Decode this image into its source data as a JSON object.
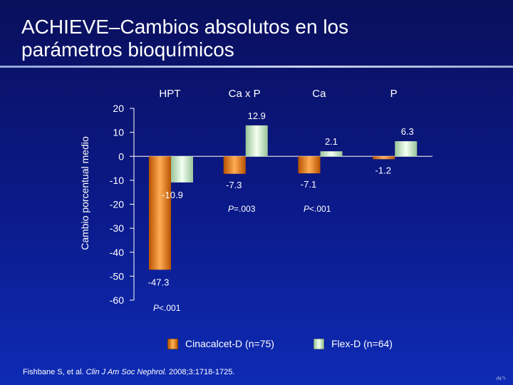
{
  "slide": {
    "title_line1": "ACHIEVE–Cambios absolutos en los",
    "title_line2": "parámetros bioquímicos",
    "citation_authors": "Fishbane S, et al.",
    "citation_journal": "Clin J Am Soc Nephrol.",
    "citation_rest": "2008;3:1718-1725.",
    "slide_number": "‹N.º›"
  },
  "chart_data": {
    "type": "bar",
    "categories": [
      "HPT",
      "Ca x P",
      "Ca",
      "P"
    ],
    "series": [
      {
        "name": "Cinacalcet-D (n=75)",
        "color": "#e97e10",
        "values": [
          -47.3,
          -7.3,
          -7.1,
          -1.2
        ]
      },
      {
        "name": "Flex-D (n=64)",
        "color": "#c8f0c0",
        "values": [
          -10.9,
          12.9,
          2.1,
          6.3
        ]
      }
    ],
    "data_labels": [
      [
        "-47.3",
        "-7.3",
        "-7.1",
        "-1.2"
      ],
      [
        "-10.9",
        "12.9",
        "2.1",
        "6.3"
      ]
    ],
    "ylabel": "Cambio porcentual medio",
    "ylim": [
      -60,
      20
    ],
    "yticks": [
      20,
      10,
      0,
      -10,
      -20,
      -30,
      -40,
      -50,
      -60
    ],
    "p_values": [
      "P<.001",
      "P=.003",
      "P<.001"
    ],
    "legend_position": "bottom",
    "grid": false
  }
}
